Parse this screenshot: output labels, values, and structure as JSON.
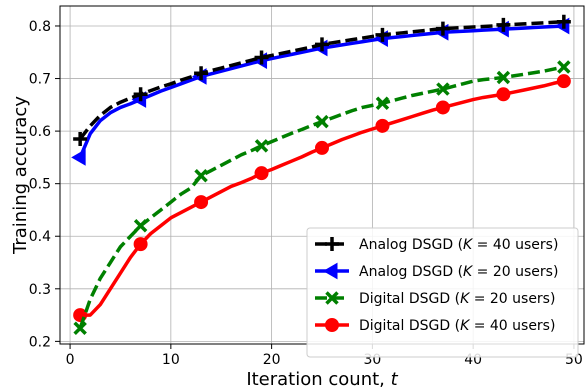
{
  "chart_data": {
    "type": "line",
    "title": "",
    "xlabel": "Iteration count, ",
    "xlabel_var": "t",
    "ylabel": "Training accuracy",
    "xlim": [
      -1,
      51
    ],
    "ylim": [
      0.195,
      0.838
    ],
    "xticks": [
      0,
      10,
      20,
      30,
      40,
      50
    ],
    "yticks": [
      0.2,
      0.3,
      0.4,
      0.5,
      0.6,
      0.7,
      0.8
    ],
    "xtick_labels": [
      "0",
      "10",
      "20",
      "30",
      "40",
      "50"
    ],
    "ytick_labels": [
      "0.2",
      "0.3",
      "0.4",
      "0.5",
      "0.6",
      "0.7",
      "0.8"
    ],
    "grid": true,
    "legend_position": "lower-right",
    "series": [
      {
        "name": "Analog DSGD (K = 40 users)",
        "legend_prefix": "Analog DSGD (",
        "legend_var": "K",
        "legend_suffix": " = 40 users)",
        "color": "#000000",
        "dash": "dashed",
        "marker": "plus",
        "x": [
          1,
          2,
          3,
          4,
          5,
          6,
          7,
          8,
          9,
          10,
          11,
          12,
          13,
          14,
          15,
          16,
          17,
          18,
          19,
          20,
          21,
          22,
          23,
          24,
          25,
          26,
          27,
          28,
          29,
          30,
          31,
          32,
          33,
          34,
          35,
          36,
          37,
          38,
          39,
          40,
          41,
          42,
          43,
          44,
          45,
          46,
          47,
          48,
          49
        ],
        "y": [
          0.585,
          0.61,
          0.63,
          0.645,
          0.655,
          0.663,
          0.67,
          0.677,
          0.684,
          0.69,
          0.697,
          0.703,
          0.71,
          0.715,
          0.72,
          0.725,
          0.73,
          0.735,
          0.74,
          0.744,
          0.748,
          0.752,
          0.756,
          0.76,
          0.765,
          0.768,
          0.771,
          0.774,
          0.777,
          0.78,
          0.783,
          0.785,
          0.787,
          0.789,
          0.791,
          0.793,
          0.795,
          0.796,
          0.797,
          0.798,
          0.799,
          0.8,
          0.802,
          0.803,
          0.804,
          0.805,
          0.806,
          0.807,
          0.808
        ],
        "marker_every": [
          0,
          6,
          12,
          18,
          24,
          30,
          36,
          42,
          48
        ]
      },
      {
        "name": "Analog DSGD (K = 20 users)",
        "legend_prefix": "Analog DSGD (",
        "legend_var": "K",
        "legend_suffix": " = 20 users)",
        "color": "#0000ff",
        "dash": "solid",
        "marker": "triangle-left",
        "x": [
          1,
          2,
          3,
          4,
          5,
          6,
          7,
          8,
          9,
          10,
          11,
          12,
          13,
          14,
          15,
          16,
          17,
          18,
          19,
          20,
          21,
          22,
          23,
          24,
          25,
          26,
          27,
          28,
          29,
          30,
          31,
          32,
          33,
          34,
          35,
          36,
          37,
          38,
          39,
          40,
          41,
          42,
          43,
          44,
          45,
          46,
          47,
          48,
          49
        ],
        "y": [
          0.55,
          0.595,
          0.62,
          0.635,
          0.645,
          0.652,
          0.66,
          0.668,
          0.676,
          0.683,
          0.69,
          0.697,
          0.704,
          0.709,
          0.714,
          0.719,
          0.724,
          0.729,
          0.734,
          0.738,
          0.742,
          0.746,
          0.75,
          0.754,
          0.758,
          0.761,
          0.764,
          0.767,
          0.77,
          0.773,
          0.776,
          0.778,
          0.78,
          0.782,
          0.784,
          0.786,
          0.788,
          0.789,
          0.79,
          0.791,
          0.792,
          0.793,
          0.794,
          0.795,
          0.796,
          0.797,
          0.798,
          0.799,
          0.8
        ],
        "marker_every": [
          0,
          6,
          12,
          18,
          24,
          30,
          36,
          42,
          48
        ]
      },
      {
        "name": "Digital DSGD (K = 20 users)",
        "legend_prefix": "Digital DSGD (",
        "legend_var": "K",
        "legend_suffix": " = 20 users)",
        "color": "#008000",
        "dash": "dashed",
        "marker": "x",
        "x": [
          1,
          2,
          3,
          4,
          5,
          6,
          7,
          8,
          9,
          10,
          11,
          12,
          13,
          14,
          15,
          16,
          17,
          18,
          19,
          20,
          21,
          22,
          23,
          24,
          25,
          26,
          27,
          28,
          29,
          30,
          31,
          32,
          33,
          34,
          35,
          36,
          37,
          38,
          39,
          40,
          41,
          42,
          43,
          44,
          45,
          46,
          47,
          48,
          49
        ],
        "y": [
          0.225,
          0.28,
          0.32,
          0.35,
          0.38,
          0.4,
          0.42,
          0.435,
          0.45,
          0.465,
          0.48,
          0.492,
          0.515,
          0.525,
          0.535,
          0.545,
          0.555,
          0.563,
          0.572,
          0.58,
          0.588,
          0.596,
          0.603,
          0.611,
          0.618,
          0.625,
          0.632,
          0.639,
          0.645,
          0.649,
          0.653,
          0.658,
          0.663,
          0.668,
          0.672,
          0.676,
          0.68,
          0.685,
          0.69,
          0.695,
          0.698,
          0.7,
          0.702,
          0.705,
          0.708,
          0.711,
          0.714,
          0.718,
          0.722
        ],
        "marker_every": [
          0,
          6,
          12,
          18,
          24,
          30,
          36,
          42,
          48
        ]
      },
      {
        "name": "Digital DSGD (K = 40 users)",
        "legend_prefix": "Digital DSGD (",
        "legend_var": "K",
        "legend_suffix": " = 40 users)",
        "color": "#ff0000",
        "dash": "solid",
        "marker": "circle",
        "x": [
          1,
          2,
          3,
          4,
          5,
          6,
          7,
          8,
          9,
          10,
          11,
          12,
          13,
          14,
          15,
          16,
          17,
          18,
          19,
          20,
          21,
          22,
          23,
          24,
          25,
          26,
          27,
          28,
          29,
          30,
          31,
          32,
          33,
          34,
          35,
          36,
          37,
          38,
          39,
          40,
          41,
          42,
          43,
          44,
          45,
          46,
          47,
          48,
          49
        ],
        "y": [
          0.25,
          0.25,
          0.27,
          0.3,
          0.33,
          0.36,
          0.385,
          0.405,
          0.42,
          0.435,
          0.445,
          0.455,
          0.465,
          0.475,
          0.485,
          0.495,
          0.502,
          0.51,
          0.52,
          0.527,
          0.535,
          0.543,
          0.551,
          0.56,
          0.568,
          0.576,
          0.584,
          0.591,
          0.598,
          0.604,
          0.61,
          0.616,
          0.622,
          0.628,
          0.634,
          0.64,
          0.645,
          0.65,
          0.655,
          0.66,
          0.664,
          0.667,
          0.67,
          0.674,
          0.678,
          0.682,
          0.686,
          0.691,
          0.695
        ],
        "marker_every": [
          0,
          6,
          12,
          18,
          24,
          30,
          36,
          42,
          48
        ]
      }
    ]
  }
}
